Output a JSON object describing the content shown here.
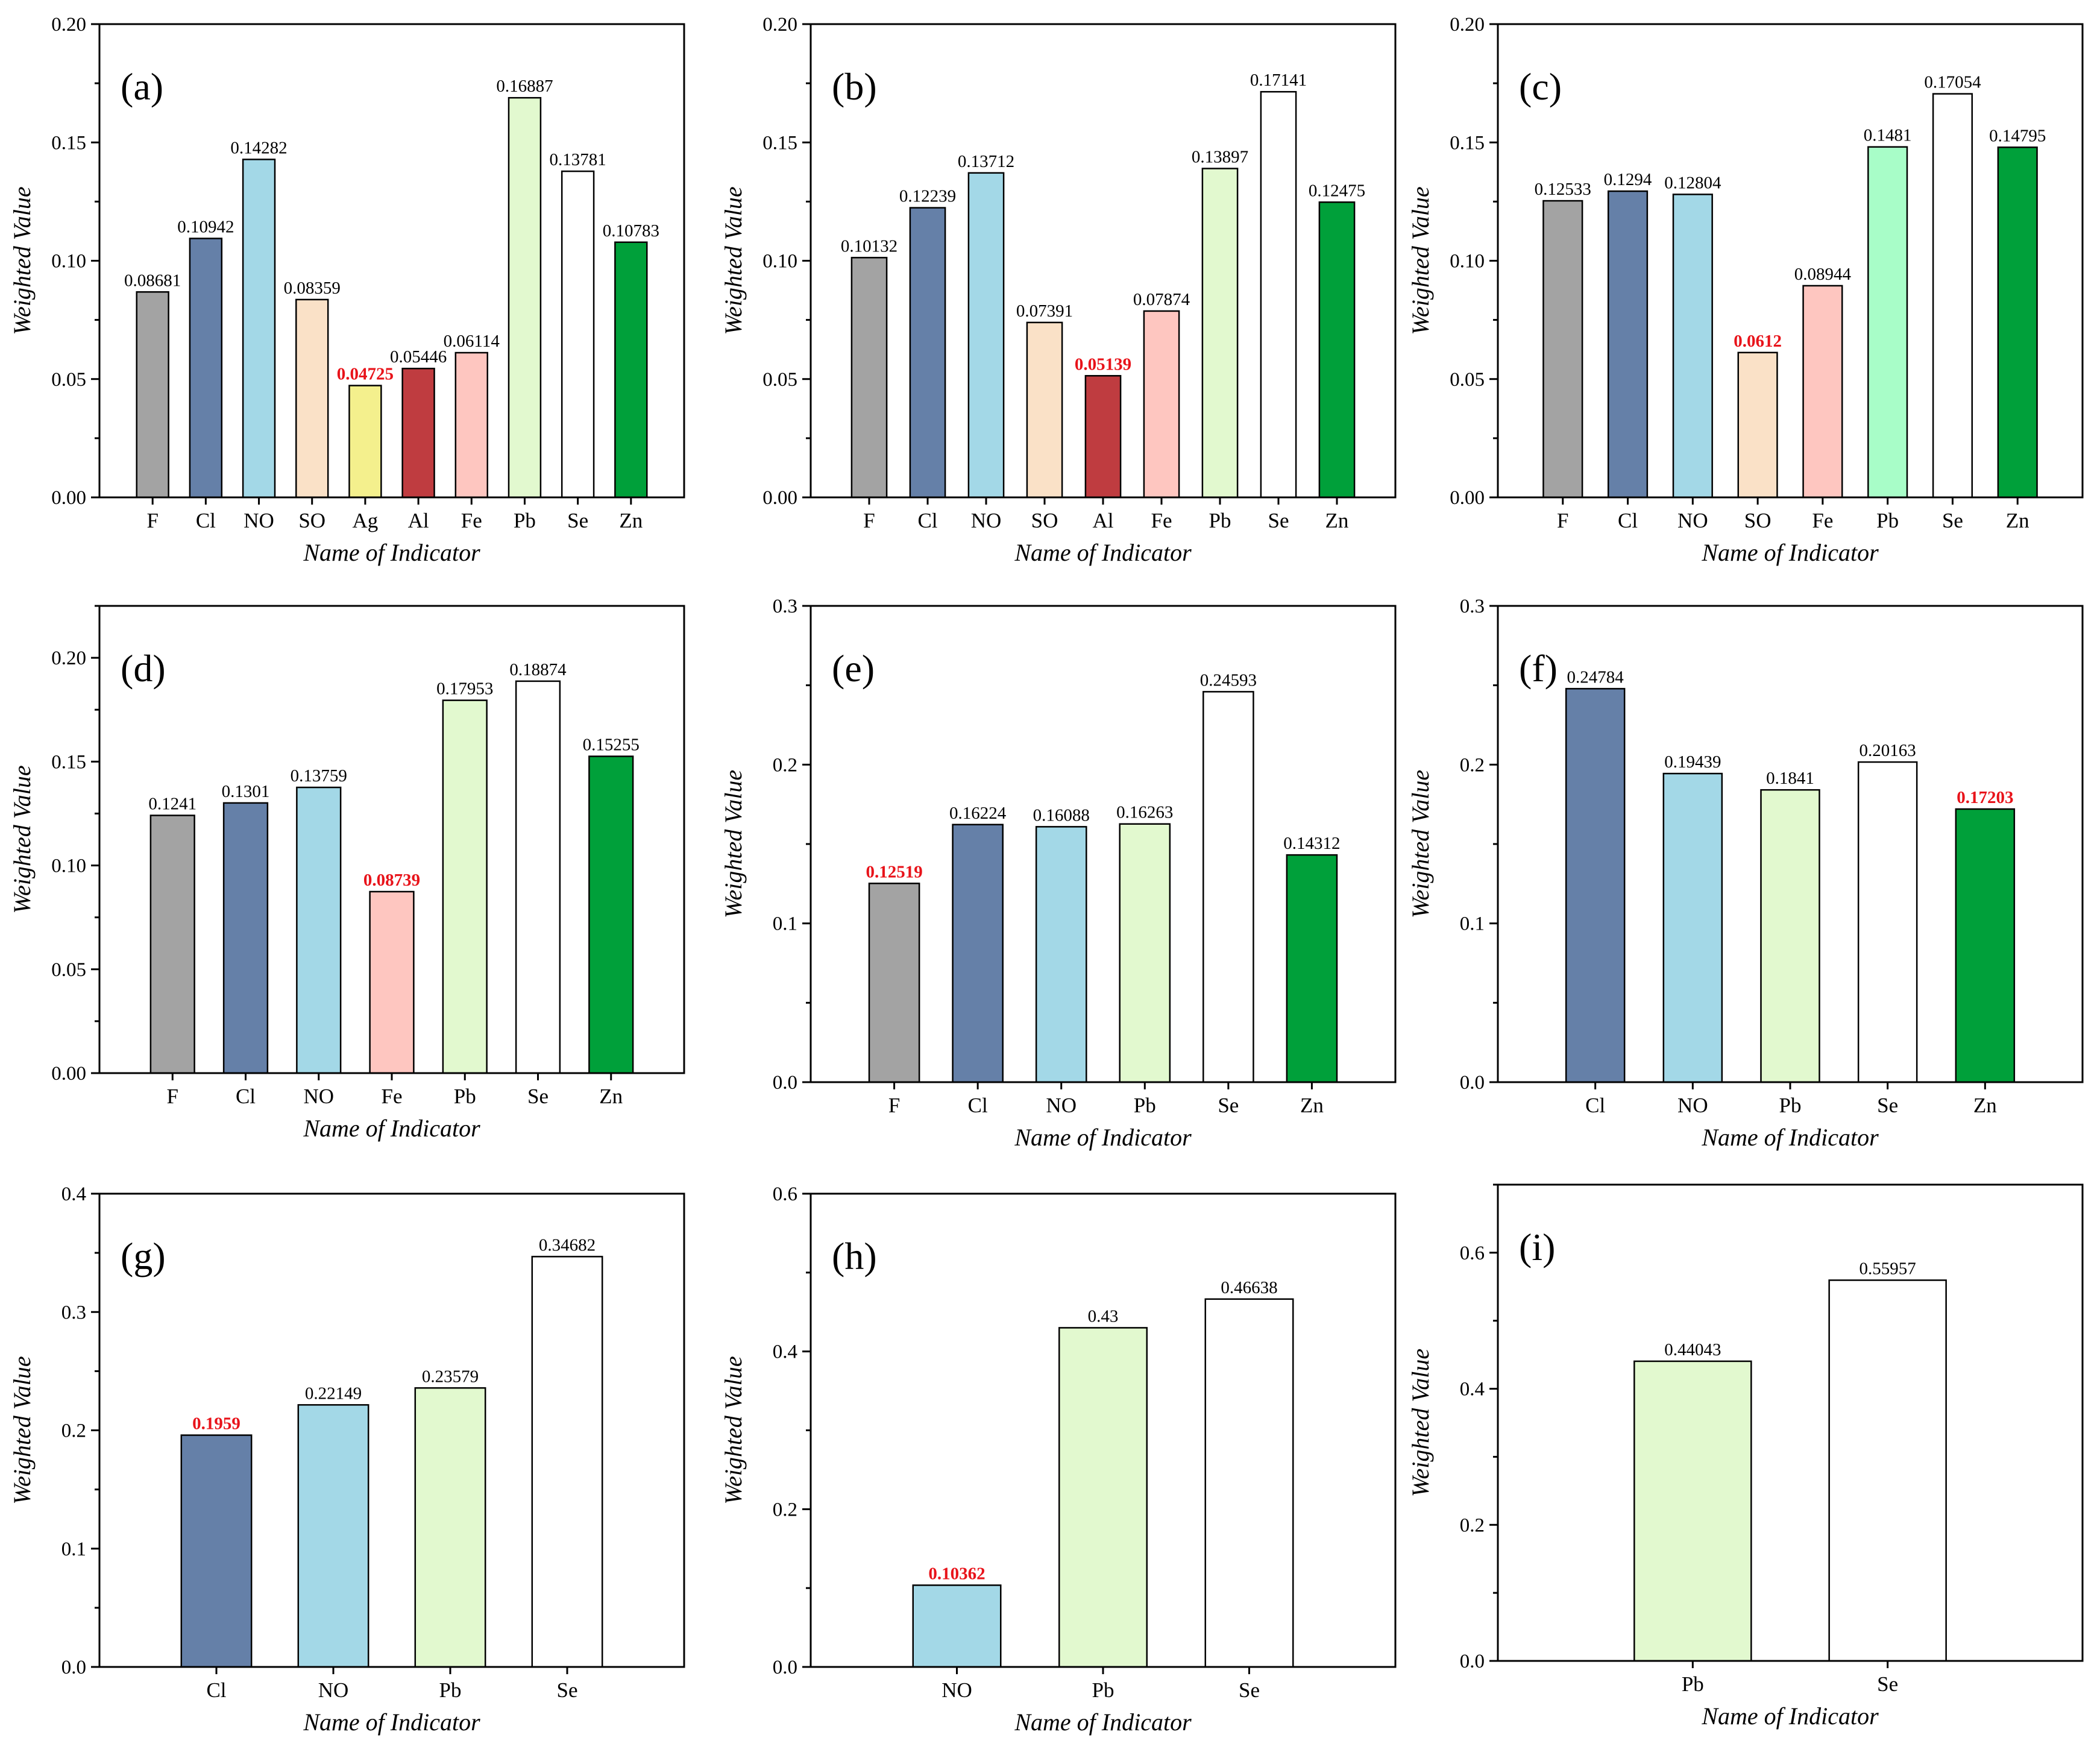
{
  "colors": {
    "F": "#a3a3a3",
    "Cl": "#6580a8",
    "NO": "#a3d8e7",
    "SO": "#fae1c7",
    "Ag": "#f4f08d",
    "Al": "#bf3c40",
    "Fe": "#fec6c0",
    "Pb_light": "#e2f9cf",
    "Pb_mint": "#a8fdc8",
    "Se": "#ffffff",
    "Zn": "#00a03a",
    "highlight": "#e8131a"
  },
  "chart_data": [
    {
      "type": "bar",
      "label": "(a)",
      "title": "",
      "xlabel": "Name of Indicator",
      "ylabel": "Weighted Value",
      "categories": [
        "F",
        "Cl",
        "NO",
        "SO",
        "Ag",
        "Al",
        "Fe",
        "Pb",
        "Se",
        "Zn"
      ],
      "values": [
        0.08681,
        0.10942,
        0.14282,
        0.08359,
        0.04725,
        0.05446,
        0.06114,
        0.16887,
        0.13781,
        0.10783
      ],
      "value_labels": [
        "0.08681",
        "0.10942",
        "0.14282",
        "0.08359",
        "0.04725",
        "0.05446",
        "0.06114",
        "0.16887",
        "0.13781",
        "0.10783"
      ],
      "bar_colors": [
        "F",
        "Cl",
        "NO",
        "SO",
        "Ag",
        "Al",
        "Fe",
        "Pb_light",
        "Se",
        "Zn"
      ],
      "highlight_index": 4,
      "ylim": [
        0,
        0.2
      ],
      "yticks": [
        "0.00",
        "0.05",
        "0.10",
        "0.15",
        "0.20"
      ]
    },
    {
      "type": "bar",
      "label": "(b)",
      "title": "",
      "xlabel": "Name of Indicator",
      "ylabel": "Weighted Value",
      "categories": [
        "F",
        "Cl",
        "NO",
        "SO",
        "Al",
        "Fe",
        "Pb",
        "Se",
        "Zn"
      ],
      "values": [
        0.10132,
        0.12239,
        0.13712,
        0.07391,
        0.05139,
        0.07874,
        0.13897,
        0.17141,
        0.12475
      ],
      "value_labels": [
        "0.10132",
        "0.12239",
        "0.13712",
        "0.07391",
        "0.05139",
        "0.07874",
        "0.13897",
        "0.17141",
        "0.12475"
      ],
      "bar_colors": [
        "F",
        "Cl",
        "NO",
        "SO",
        "Al",
        "Fe",
        "Pb_light",
        "Se",
        "Zn"
      ],
      "highlight_index": 4,
      "ylim": [
        0,
        0.2
      ],
      "yticks": [
        "0.00",
        "0.05",
        "0.10",
        "0.15",
        "0.20"
      ]
    },
    {
      "type": "bar",
      "label": "(c)",
      "title": "",
      "xlabel": "Name of Indicator",
      "ylabel": "Weighted Value",
      "categories": [
        "F",
        "Cl",
        "NO",
        "SO",
        "Fe",
        "Pb",
        "Se",
        "Zn"
      ],
      "values": [
        0.12533,
        0.1294,
        0.12804,
        0.0612,
        0.08944,
        0.1481,
        0.17054,
        0.14795
      ],
      "value_labels": [
        "0.12533",
        "0.1294",
        "0.12804",
        "0.0612",
        "0.08944",
        "0.1481",
        "0.17054",
        "0.14795"
      ],
      "bar_colors": [
        "F",
        "Cl",
        "NO",
        "SO",
        "Fe",
        "Pb_mint",
        "Se",
        "Zn"
      ],
      "highlight_index": 3,
      "ylim": [
        0,
        0.2
      ],
      "yticks": [
        "0.00",
        "0.05",
        "0.10",
        "0.15",
        "0.20"
      ]
    },
    {
      "type": "bar",
      "label": "(d)",
      "title": "",
      "xlabel": "Name of Indicator",
      "ylabel": "Weighted Value",
      "categories": [
        "F",
        "Cl",
        "NO",
        "Fe",
        "Pb",
        "Se",
        "Zn"
      ],
      "values": [
        0.1241,
        0.1301,
        0.13759,
        0.08739,
        0.17953,
        0.18874,
        0.15255
      ],
      "value_labels": [
        "0.1241",
        "0.1301",
        "0.13759",
        "0.08739",
        "0.17953",
        "0.18874",
        "0.15255"
      ],
      "bar_colors": [
        "F",
        "Cl",
        "NO",
        "Fe",
        "Pb_light",
        "Se",
        "Zn"
      ],
      "highlight_index": 3,
      "ylim": [
        0,
        0.225
      ],
      "yticks": [
        "0.00",
        "0.05",
        "0.10",
        "0.15",
        "0.20"
      ]
    },
    {
      "type": "bar",
      "label": "(e)",
      "title": "",
      "xlabel": "Name of Indicator",
      "ylabel": "Weighted Value",
      "categories": [
        "F",
        "Cl",
        "NO",
        "Pb",
        "Se",
        "Zn"
      ],
      "values": [
        0.12519,
        0.16224,
        0.16088,
        0.16263,
        0.24593,
        0.14312
      ],
      "value_labels": [
        "0.12519",
        "0.16224",
        "0.16088",
        "0.16263",
        "0.24593",
        "0.14312"
      ],
      "bar_colors": [
        "F",
        "Cl",
        "NO",
        "Pb_light",
        "Se",
        "Zn"
      ],
      "highlight_index": 0,
      "ylim": [
        0,
        0.3
      ],
      "yticks": [
        "0.0",
        "0.1",
        "0.2",
        "0.3"
      ]
    },
    {
      "type": "bar",
      "label": "(f)",
      "title": "",
      "xlabel": "Name of Indicator",
      "ylabel": "Weighted Value",
      "categories": [
        "Cl",
        "NO",
        "Pb",
        "Se",
        "Zn"
      ],
      "values": [
        0.24784,
        0.19439,
        0.1841,
        0.20163,
        0.17203
      ],
      "value_labels": [
        "0.24784",
        "0.19439",
        "0.1841",
        "0.20163",
        "0.17203"
      ],
      "bar_colors": [
        "Cl",
        "NO",
        "Pb_light",
        "Se",
        "Zn"
      ],
      "highlight_index": 4,
      "ylim": [
        0,
        0.3
      ],
      "yticks": [
        "0.0",
        "0.1",
        "0.2",
        "0.3"
      ]
    },
    {
      "type": "bar",
      "label": "(g)",
      "title": "",
      "xlabel": "Name of Indicator",
      "ylabel": "Weighted Value",
      "categories": [
        "Cl",
        "NO",
        "Pb",
        "Se"
      ],
      "values": [
        0.1959,
        0.22149,
        0.23579,
        0.34682
      ],
      "value_labels": [
        "0.1959",
        "0.22149",
        "0.23579",
        "0.34682"
      ],
      "bar_colors": [
        "Cl",
        "NO",
        "Pb_light",
        "Se"
      ],
      "highlight_index": 0,
      "ylim": [
        0,
        0.4
      ],
      "yticks": [
        "0.0",
        "0.1",
        "0.2",
        "0.3",
        "0.4"
      ]
    },
    {
      "type": "bar",
      "label": "(h)",
      "title": "",
      "xlabel": "Name of Indicator",
      "ylabel": "Weighted Value",
      "categories": [
        "NO",
        "Pb",
        "Se"
      ],
      "values": [
        0.10362,
        0.43,
        0.46638
      ],
      "value_labels": [
        "0.10362",
        "0.43",
        "0.46638"
      ],
      "bar_colors": [
        "NO",
        "Pb_light",
        "Se"
      ],
      "highlight_index": 0,
      "ylim": [
        0,
        0.6
      ],
      "yticks": [
        "0.0",
        "0.2",
        "0.4",
        "0.6"
      ]
    },
    {
      "type": "bar",
      "label": "(i)",
      "title": "",
      "xlabel": "Name of Indicator",
      "ylabel": "Weighted Value",
      "categories": [
        "Pb",
        "Se"
      ],
      "values": [
        0.44043,
        0.55957
      ],
      "value_labels": [
        "0.44043",
        "0.55957"
      ],
      "bar_colors": [
        "Pb_light",
        "Se"
      ],
      "highlight_index": -1,
      "ylim": [
        0,
        0.7
      ],
      "yticks": [
        "0.0",
        "0.2",
        "0.4",
        "0.6"
      ]
    }
  ]
}
